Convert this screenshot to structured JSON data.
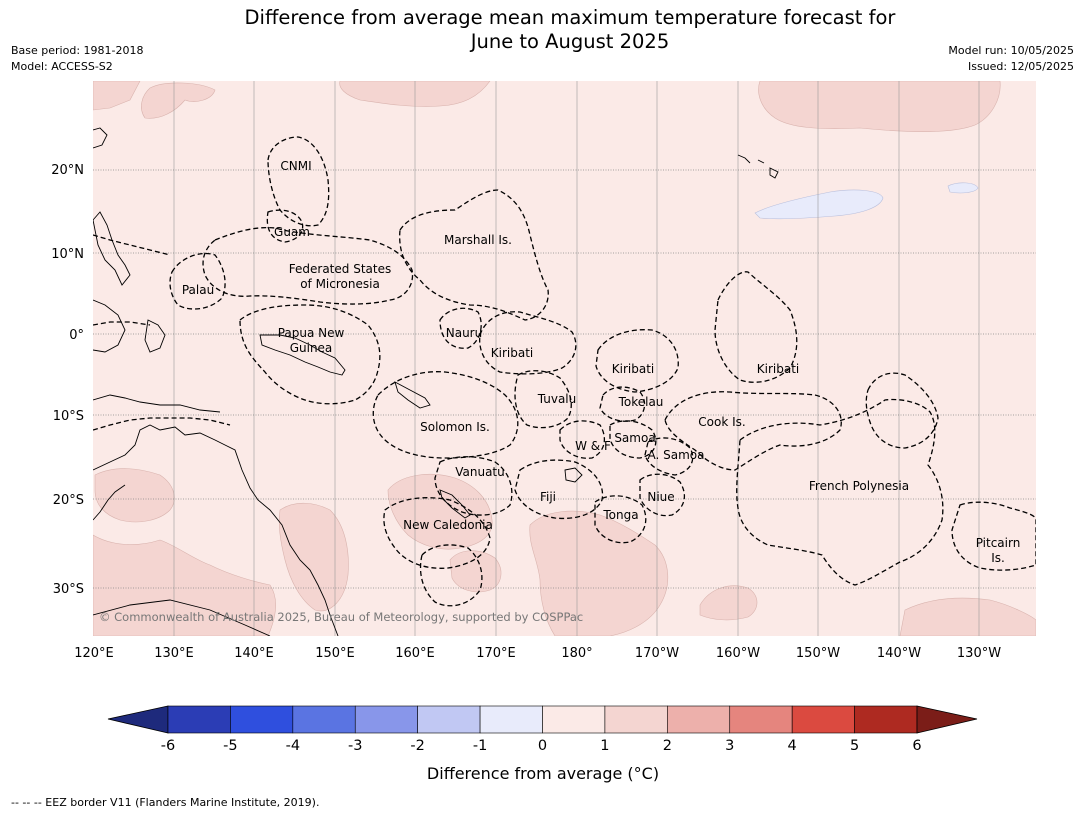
{
  "title_line1": "Difference from average mean maximum temperature forecast for",
  "title_line2": "June to August 2025",
  "meta": {
    "base_period": "Base period: 1981-2018",
    "model": "Model: ACCESS-S2",
    "model_run": "Model run: 10/05/2025",
    "issued": "Issued: 12/05/2025"
  },
  "map": {
    "lon_ticks": [
      "120°E",
      "130°E",
      "140°E",
      "150°E",
      "160°E",
      "170°E",
      "180°",
      "170°W",
      "160°W",
      "150°W",
      "140°W",
      "130°W"
    ],
    "lat_ticks": [
      "20°N",
      "10°N",
      "0°",
      "10°S",
      "20°S",
      "30°S"
    ],
    "copyright": "© Commonwealth of Australia 2025, Bureau of Meteorology, supported by COSPPac",
    "region_labels": [
      "CNMI",
      "Guam",
      "Marshall Is.",
      "Federated States",
      "of Micronesia",
      "Palau",
      "Papua New",
      "Guinea",
      "Nauru",
      "Kiribati",
      "Kiribati",
      "Kiribati",
      "Tuvalu",
      "Tokelau",
      "Cook Is.",
      "Solomon Is.",
      "Samoa",
      "W & F",
      "A. Samoa",
      "Vanuatu",
      "Fiji",
      "Niue",
      "French Polynesia",
      "Tonga",
      "New Caledonia",
      "Pitcairn",
      "Is."
    ],
    "colors": {
      "anomaly_0_1": "#fbeae7",
      "anomaly_1_2": "#f4d5d1",
      "anomaly_m1_0": "#e8ebfb"
    }
  },
  "colorbar": {
    "ticks": [
      "-6",
      "-5",
      "-4",
      "-3",
      "-2",
      "-1",
      "0",
      "1",
      "2",
      "3",
      "4",
      "5",
      "6"
    ],
    "label": "Difference from average (°C)",
    "colors": [
      "#1e2a7c",
      "#2b3db5",
      "#2f4fde",
      "#5a74e2",
      "#8896ea",
      "#c1c8f3",
      "#e8ebfb",
      "#fbeae7",
      "#f4d5d1",
      "#edb0ab",
      "#e5857e",
      "#db4a40",
      "#ae2a21",
      "#7b1d18"
    ]
  },
  "footnote": "-- -- -- EEZ border V11 (Flanders Marine Institute, 2019)."
}
